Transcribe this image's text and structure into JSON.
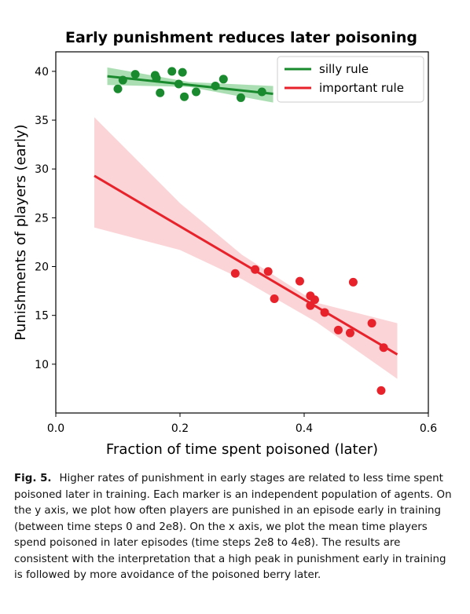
{
  "chart_data": {
    "type": "scatter",
    "title": "Early punishment reduces later poisoning",
    "xlabel": "Fraction of time spent poisoned (later)",
    "ylabel": "Punishments of players (early)",
    "xlim": [
      0.0,
      0.6
    ],
    "ylim": [
      5,
      42
    ],
    "xticks": [
      "0.0",
      "0.2",
      "0.4",
      "0.6"
    ],
    "yticks": [
      "10",
      "15",
      "20",
      "25",
      "30",
      "35",
      "40"
    ],
    "legend_position": "top-right",
    "series": [
      {
        "name": "silly rule",
        "color": "#1a8a2e",
        "band_color": "#8fd49a",
        "points": [
          [
            0.1,
            38.2
          ],
          [
            0.108,
            39.1
          ],
          [
            0.128,
            39.7
          ],
          [
            0.16,
            39.6
          ],
          [
            0.162,
            39.3
          ],
          [
            0.168,
            37.8
          ],
          [
            0.187,
            40.0
          ],
          [
            0.198,
            38.7
          ],
          [
            0.204,
            39.9
          ],
          [
            0.207,
            37.4
          ],
          [
            0.226,
            37.9
          ],
          [
            0.257,
            38.5
          ],
          [
            0.27,
            39.2
          ],
          [
            0.298,
            37.3
          ],
          [
            0.332,
            37.9
          ]
        ],
        "fit_line": [
          [
            0.083,
            39.5
          ],
          [
            0.35,
            37.7
          ]
        ],
        "band_upper": [
          [
            0.083,
            40.4
          ],
          [
            0.215,
            38.9
          ],
          [
            0.35,
            38.5
          ]
        ],
        "band_lower": [
          [
            0.083,
            38.6
          ],
          [
            0.215,
            38.4
          ],
          [
            0.35,
            36.8
          ]
        ]
      },
      {
        "name": "important rule",
        "color": "#e8222b",
        "band_color": "#f9c6ca",
        "points": [
          [
            0.289,
            19.3
          ],
          [
            0.321,
            19.7
          ],
          [
            0.342,
            19.5
          ],
          [
            0.352,
            16.7
          ],
          [
            0.393,
            18.5
          ],
          [
            0.41,
            17.0
          ],
          [
            0.41,
            16.0
          ],
          [
            0.417,
            16.6
          ],
          [
            0.433,
            15.3
          ],
          [
            0.455,
            13.5
          ],
          [
            0.474,
            13.2
          ],
          [
            0.479,
            18.4
          ],
          [
            0.509,
            14.2
          ],
          [
            0.524,
            7.3
          ],
          [
            0.528,
            11.7
          ]
        ],
        "fit_line": [
          [
            0.062,
            29.3
          ],
          [
            0.55,
            11.0
          ]
        ],
        "band_upper": [
          [
            0.062,
            35.3
          ],
          [
            0.2,
            26.5
          ],
          [
            0.3,
            21.2
          ],
          [
            0.42,
            16.3
          ],
          [
            0.55,
            14.2
          ]
        ],
        "band_lower": [
          [
            0.062,
            24.0
          ],
          [
            0.2,
            21.7
          ],
          [
            0.3,
            18.7
          ],
          [
            0.42,
            14.3
          ],
          [
            0.55,
            8.5
          ]
        ]
      }
    ]
  },
  "caption": {
    "label": "Fig. 5.",
    "text": "Higher rates of punishment in early stages are related to less time spent poisoned later in training. Each marker is an independent population of agents. On the y axis, we plot how often players are punished in an episode early in training (between time steps 0 and 2e8). On the x axis, we plot the mean time players spend poisoned in later episodes (time steps 2e8 to 4e8). The results are consistent with the interpretation that a high peak in punishment early in training is followed by more avoidance of the poisoned berry later."
  }
}
